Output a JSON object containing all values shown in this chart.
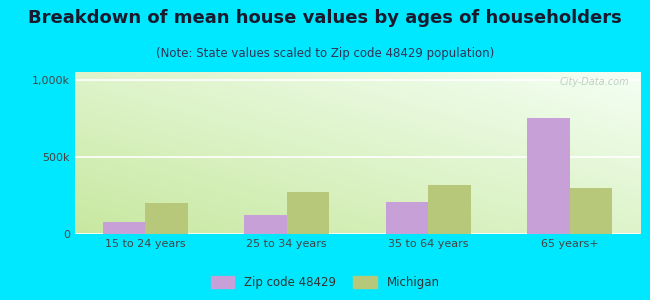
{
  "title": "Breakdown of mean house values by ages of householders",
  "subtitle": "(Note: State values scaled to Zip code 48429 population)",
  "categories": [
    "15 to 24 years",
    "25 to 34 years",
    "35 to 64 years",
    "65 years+"
  ],
  "zip_values": [
    75000,
    120000,
    210000,
    750000
  ],
  "michigan_values": [
    200000,
    275000,
    320000,
    300000
  ],
  "zip_color": "#c8a0d8",
  "michigan_color": "#b8c87a",
  "zip_label": "Zip code 48429",
  "michigan_label": "Michigan",
  "ylim": [
    0,
    1050000
  ],
  "yticks": [
    0,
    500000,
    1000000
  ],
  "ytick_labels": [
    "0",
    "500k",
    "1,000k"
  ],
  "outer_bg": "#00e8ff",
  "bar_width": 0.3,
  "title_fontsize": 13,
  "subtitle_fontsize": 8.5,
  "watermark": "City-Data.com"
}
